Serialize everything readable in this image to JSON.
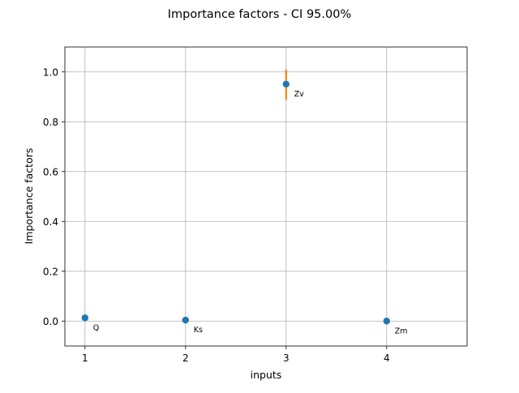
{
  "chart_data": {
    "type": "scatter",
    "title": "Importance factors - CI 95.00%",
    "xlabel": "inputs",
    "ylabel": "Importance factors",
    "xlim": [
      0.8,
      4.8
    ],
    "ylim": [
      -0.1,
      1.1
    ],
    "xticks": [
      1,
      2,
      3,
      4
    ],
    "xtick_labels": [
      "1",
      "2",
      "3",
      "4"
    ],
    "yticks": [
      0.0,
      0.2,
      0.4,
      0.6,
      0.8,
      1.0
    ],
    "ytick_labels": [
      "0.0",
      "0.2",
      "0.4",
      "0.6",
      "0.8",
      "1.0"
    ],
    "grid": true,
    "points": [
      {
        "x": 1,
        "y": 0.013,
        "label": "Q",
        "ci": [
          0.005,
          0.021
        ]
      },
      {
        "x": 2,
        "y": 0.004,
        "label": "Ks",
        "ci": [
          -0.002,
          0.01
        ]
      },
      {
        "x": 3,
        "y": 0.951,
        "label": "Zv",
        "ci": [
          0.888,
          1.01
        ]
      },
      {
        "x": 4,
        "y": 0.0,
        "label": "Zm",
        "ci": [
          -0.002,
          0.002
        ]
      }
    ],
    "colors": {
      "marker": "#1f77b4",
      "errorbar": "#ff7f0e",
      "grid": "#b0b0b0"
    }
  }
}
